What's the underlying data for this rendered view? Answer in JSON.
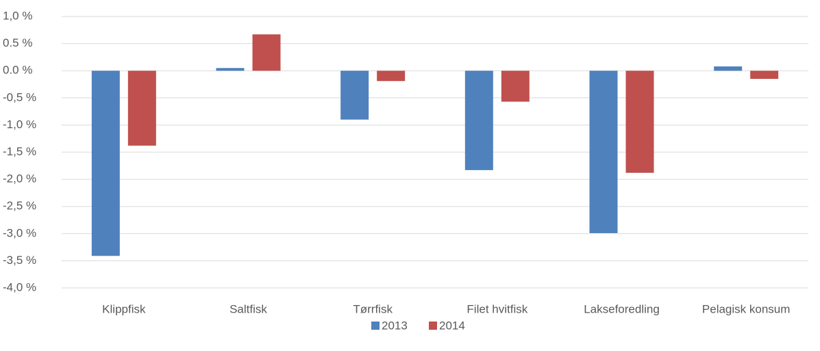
{
  "chart_data": {
    "type": "bar",
    "categories": [
      "Klippfisk",
      "Saltfisk",
      "Tørrfisk",
      "Filet hvitfisk",
      "Lakseforedling",
      "Pelagisk konsum"
    ],
    "series": [
      {
        "name": "2013",
        "color": "#4f81bd",
        "values": [
          -3.41,
          0.05,
          -0.9,
          -1.83,
          -2.99,
          0.08
        ]
      },
      {
        "name": "2014",
        "color": "#c0504d",
        "values": [
          -1.38,
          0.67,
          -0.19,
          -0.57,
          -1.88,
          -0.15
        ]
      }
    ],
    "ylim": [
      -4,
      1
    ],
    "yticks": [
      {
        "value": 1,
        "label": "1,0 %"
      },
      {
        "value": 0.5,
        "label": "0.5 %"
      },
      {
        "value": 0,
        "label": "0.0 %"
      },
      {
        "value": -0.5,
        "label": "-0,5 %"
      },
      {
        "value": -1,
        "label": "-1,0 %"
      },
      {
        "value": -1.5,
        "label": "-1,5 %"
      },
      {
        "value": -2,
        "label": "-2,0 %"
      },
      {
        "value": -2.5,
        "label": "-2,5 %"
      },
      {
        "value": -3,
        "label": "-3,0 %"
      },
      {
        "value": -3.5,
        "label": "-3,5 %"
      },
      {
        "value": -4,
        "label": "-4,0 %"
      }
    ],
    "grid": true,
    "legend": "bottom"
  }
}
